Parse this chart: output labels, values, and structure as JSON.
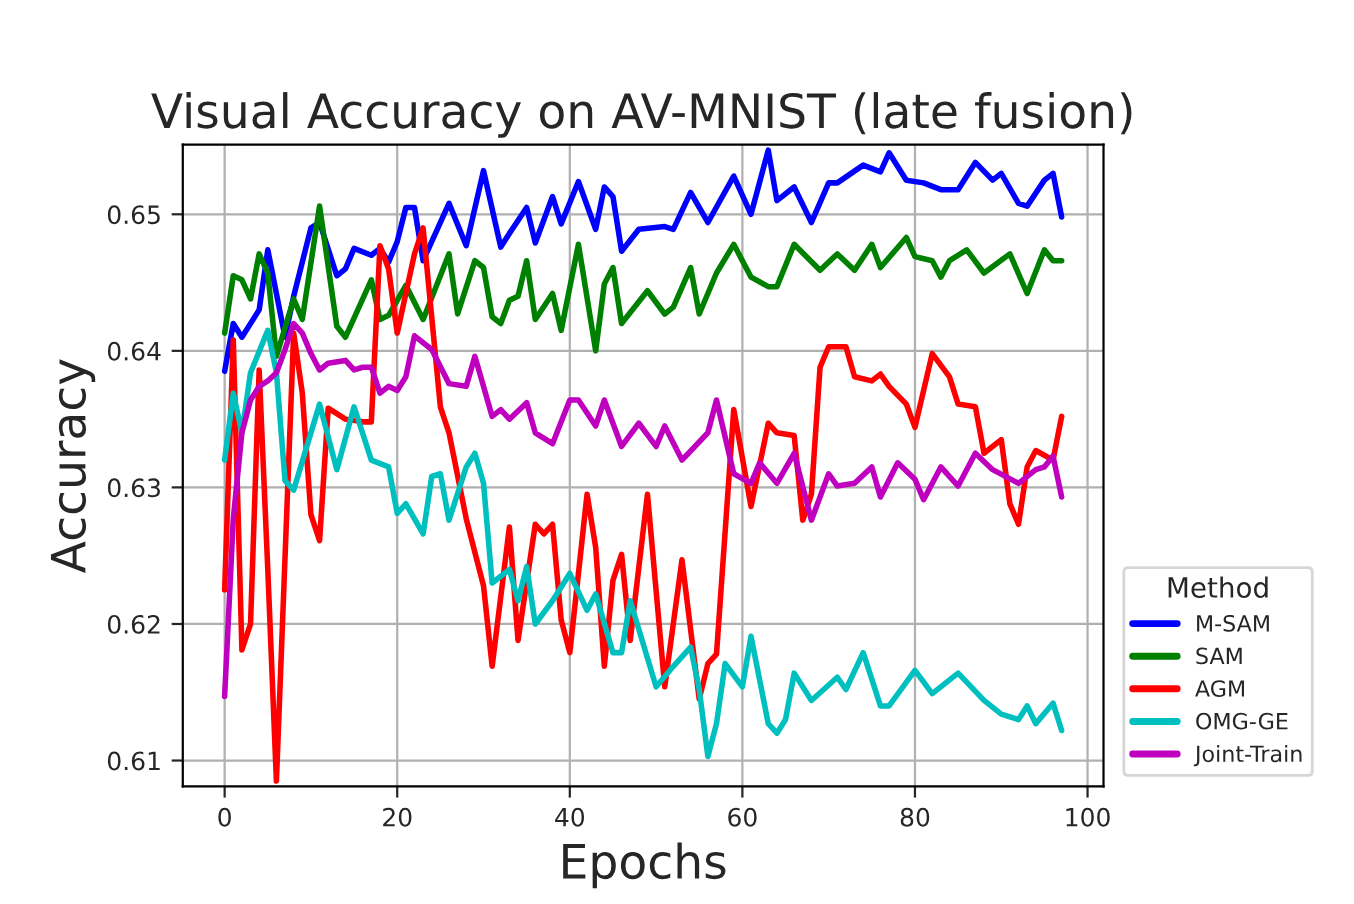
{
  "chart_data": {
    "type": "line",
    "title": "Visual Accuracy on AV-MNIST (late fusion)",
    "xlabel": "Epochs",
    "ylabel": "Accuracy",
    "legend_title": "Method",
    "legend": "bottom right",
    "grid": true,
    "line_style": "solid",
    "marker": "none",
    "xlim": [
      -4.85,
      101.85
    ],
    "xticks": [
      0,
      20,
      40,
      60,
      80,
      100
    ],
    "ylim": [
      0.6081,
      0.6551
    ],
    "yticks": [
      0.61,
      0.62,
      0.63,
      0.64,
      0.65
    ],
    "series": [
      {
        "name": "M-SAM",
        "color": "#0000ff",
        "x": [
          0,
          1,
          2,
          4,
          5,
          7,
          8,
          10,
          11,
          13,
          14,
          15,
          17,
          18,
          19,
          20,
          21,
          22,
          23,
          26,
          28,
          30,
          32,
          33,
          35,
          36,
          38,
          39,
          41,
          43,
          44,
          45,
          46,
          48,
          51,
          52,
          54,
          56,
          59,
          61,
          63,
          64,
          66,
          68,
          70,
          71,
          74,
          76,
          77,
          79,
          81,
          83,
          85,
          87,
          89,
          90,
          92,
          93,
          95,
          96,
          97
        ],
        "values": [
          0.6385,
          0.642,
          0.641,
          0.643,
          0.6474,
          0.641,
          0.644,
          0.649,
          0.6494,
          0.6455,
          0.646,
          0.6475,
          0.647,
          0.6475,
          0.6465,
          0.648,
          0.6505,
          0.6505,
          0.6466,
          0.6508,
          0.6477,
          0.6532,
          0.6476,
          0.6486,
          0.6505,
          0.6479,
          0.6513,
          0.6493,
          0.6524,
          0.6489,
          0.652,
          0.6513,
          0.6473,
          0.6489,
          0.6491,
          0.6489,
          0.6516,
          0.6494,
          0.6528,
          0.65,
          0.6547,
          0.651,
          0.652,
          0.6494,
          0.6523,
          0.6523,
          0.6536,
          0.6531,
          0.6545,
          0.6525,
          0.6523,
          0.6518,
          0.6518,
          0.6538,
          0.6525,
          0.653,
          0.6508,
          0.6506,
          0.6525,
          0.653,
          0.6498
        ]
      },
      {
        "name": "SAM",
        "color": "#008000",
        "x": [
          0,
          1,
          2,
          3,
          4,
          5,
          6,
          8,
          9,
          11,
          13,
          14,
          17,
          18,
          19,
          21,
          23,
          26,
          27,
          29,
          30,
          31,
          32,
          33,
          34,
          35,
          36,
          38,
          39,
          41,
          43,
          44,
          45,
          46,
          49,
          51,
          52,
          54,
          55,
          57,
          59,
          61,
          63,
          64,
          66,
          69,
          71,
          73,
          75,
          76,
          79,
          80,
          82,
          83,
          84,
          86,
          88,
          91,
          93,
          95,
          96,
          97
        ],
        "values": [
          0.6413,
          0.6455,
          0.6452,
          0.6438,
          0.6471,
          0.6457,
          0.6396,
          0.6438,
          0.6423,
          0.6506,
          0.6418,
          0.641,
          0.6452,
          0.6423,
          0.6426,
          0.6448,
          0.6423,
          0.6471,
          0.6427,
          0.6466,
          0.6461,
          0.6425,
          0.642,
          0.6437,
          0.644,
          0.6466,
          0.6423,
          0.6442,
          0.6415,
          0.6478,
          0.64,
          0.6449,
          0.6461,
          0.642,
          0.6444,
          0.6427,
          0.6432,
          0.6461,
          0.6427,
          0.6457,
          0.6478,
          0.6454,
          0.6447,
          0.6447,
          0.6478,
          0.6459,
          0.6471,
          0.6459,
          0.6478,
          0.6461,
          0.6483,
          0.6469,
          0.6466,
          0.6454,
          0.6466,
          0.6474,
          0.6457,
          0.6471,
          0.6442,
          0.6474,
          0.6466,
          0.6466
        ]
      },
      {
        "name": "AGM",
        "color": "#ff0000",
        "x": [
          0,
          1,
          2,
          3,
          4,
          5,
          6,
          8,
          9,
          10,
          11,
          12,
          14,
          16,
          17,
          18,
          19,
          20,
          22,
          23,
          25,
          26,
          28,
          30,
          31,
          33,
          34,
          36,
          37,
          38,
          39,
          40,
          42,
          43,
          44,
          45,
          46,
          47,
          49,
          51,
          53,
          55,
          56,
          57,
          59,
          61,
          63,
          64,
          66,
          67,
          68,
          69,
          70,
          72,
          73,
          75,
          76,
          77,
          79,
          80,
          82,
          84,
          85,
          87,
          88,
          90,
          91,
          92,
          93,
          94,
          96,
          97
        ],
        "values": [
          0.6225,
          0.6408,
          0.6181,
          0.62,
          0.6386,
          0.624,
          0.6085,
          0.6413,
          0.6369,
          0.628,
          0.6261,
          0.6358,
          0.635,
          0.6348,
          0.6348,
          0.6477,
          0.646,
          0.6413,
          0.6471,
          0.649,
          0.6359,
          0.634,
          0.6277,
          0.6228,
          0.6169,
          0.6271,
          0.6188,
          0.6273,
          0.6266,
          0.6273,
          0.6203,
          0.6179,
          0.6295,
          0.6256,
          0.6169,
          0.6232,
          0.6251,
          0.6188,
          0.6295,
          0.6154,
          0.6247,
          0.6145,
          0.6171,
          0.6178,
          0.6357,
          0.6286,
          0.6347,
          0.634,
          0.6338,
          0.6276,
          0.6295,
          0.6388,
          0.6403,
          0.6403,
          0.6381,
          0.6378,
          0.6383,
          0.6374,
          0.6361,
          0.6344,
          0.6398,
          0.6381,
          0.6361,
          0.6359,
          0.6325,
          0.6335,
          0.6288,
          0.6273,
          0.6315,
          0.6327,
          0.632,
          0.6352
        ]
      },
      {
        "name": "OMG-GE",
        "color": "#00bfbf",
        "x": [
          0,
          1,
          2,
          3,
          5,
          6,
          7,
          8,
          11,
          13,
          15,
          17,
          19,
          20,
          21,
          23,
          24,
          25,
          26,
          28,
          29,
          30,
          31,
          33,
          34,
          35,
          36,
          38,
          40,
          42,
          43,
          45,
          46,
          47,
          50,
          52,
          54,
          55,
          56,
          57,
          58,
          60,
          61,
          63,
          64,
          65,
          66,
          68,
          71,
          72,
          74,
          76,
          77,
          80,
          82,
          85,
          88,
          90,
          92,
          93,
          94,
          96,
          97
        ],
        "values": [
          0.632,
          0.6369,
          0.634,
          0.6384,
          0.6415,
          0.6384,
          0.6305,
          0.6298,
          0.6361,
          0.6313,
          0.6359,
          0.632,
          0.6315,
          0.6281,
          0.6288,
          0.6266,
          0.6308,
          0.631,
          0.6276,
          0.6315,
          0.6325,
          0.6303,
          0.623,
          0.624,
          0.6217,
          0.6242,
          0.62,
          0.6217,
          0.6237,
          0.621,
          0.6222,
          0.6179,
          0.6179,
          0.6217,
          0.6154,
          0.6169,
          0.6183,
          0.6152,
          0.6103,
          0.6127,
          0.6171,
          0.6154,
          0.6191,
          0.6127,
          0.612,
          0.613,
          0.6164,
          0.6144,
          0.6161,
          0.6152,
          0.6179,
          0.614,
          0.614,
          0.6166,
          0.6149,
          0.6164,
          0.6144,
          0.6134,
          0.613,
          0.614,
          0.6127,
          0.6142,
          0.6122
        ]
      },
      {
        "name": "Joint-Train",
        "color": "#bf00bf",
        "x": [
          0,
          1,
          2,
          3,
          4,
          5,
          6,
          7,
          8,
          9,
          10,
          11,
          12,
          14,
          15,
          16,
          17,
          18,
          19,
          20,
          21,
          22,
          24,
          26,
          28,
          29,
          31,
          32,
          33,
          35,
          36,
          38,
          40,
          41,
          43,
          44,
          46,
          48,
          50,
          51,
          53,
          56,
          57,
          59,
          61,
          62,
          64,
          66,
          68,
          70,
          71,
          73,
          75,
          76,
          78,
          80,
          81,
          83,
          85,
          87,
          89,
          92,
          94,
          95,
          96,
          97
        ],
        "values": [
          0.6147,
          0.6277,
          0.634,
          0.6364,
          0.6374,
          0.6378,
          0.6384,
          0.6401,
          0.642,
          0.6413,
          0.6398,
          0.6386,
          0.6391,
          0.6393,
          0.6386,
          0.6388,
          0.6388,
          0.6369,
          0.6374,
          0.6371,
          0.6381,
          0.6411,
          0.6401,
          0.6376,
          0.6374,
          0.6396,
          0.6352,
          0.6357,
          0.635,
          0.6362,
          0.634,
          0.6332,
          0.6364,
          0.6364,
          0.6345,
          0.6364,
          0.633,
          0.6347,
          0.633,
          0.6345,
          0.632,
          0.634,
          0.6364,
          0.631,
          0.6303,
          0.6318,
          0.6303,
          0.6325,
          0.6276,
          0.631,
          0.6301,
          0.6303,
          0.6315,
          0.6293,
          0.6318,
          0.6306,
          0.6291,
          0.6315,
          0.6301,
          0.6325,
          0.6313,
          0.6303,
          0.6313,
          0.6315,
          0.6323,
          0.6293
        ]
      }
    ]
  }
}
